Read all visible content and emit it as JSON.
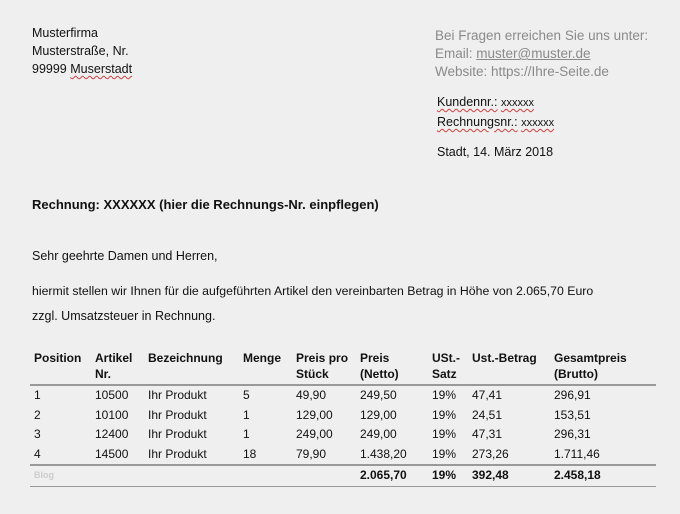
{
  "sender": {
    "company": "Musterfirma",
    "street": "Musterstraße, Nr.",
    "zip": "99999",
    "city": "Muserstadt"
  },
  "contact": {
    "intro": "Bei Fragen erreichen Sie uns unter:",
    "email_label": "Email: ",
    "email": "muster@muster.de",
    "website": "Website: https://Ihre-Seite.de"
  },
  "refs": {
    "customer_label": "Kundennr.:",
    "customer_value": "xxxxxx",
    "invoice_label": "Rechnungsnr.:",
    "invoice_value": "xxxxxx"
  },
  "date": "Stadt, 14. März 2018",
  "title": "Rechnung: XXXXXX (hier die Rechnungs-Nr. einpflegen)",
  "greeting": "Sehr geehrte Damen und Herren,",
  "body_line1": "hiermit stellen wir Ihnen für die aufgeführten Artikel den vereinbarten Betrag in Höhe von 2.065,70 Euro",
  "body_line2": "zzgl. Umsatzsteuer in Rechnung.",
  "table": {
    "headers": [
      [
        "Position",
        ""
      ],
      [
        "Artikel",
        "Nr."
      ],
      [
        "Bezeichnung",
        ""
      ],
      [
        "Menge",
        ""
      ],
      [
        "Preis pro",
        "Stück"
      ],
      [
        "Preis",
        "(Netto)"
      ],
      [
        "USt.-",
        "Satz"
      ],
      [
        "Ust.-Betrag",
        ""
      ],
      [
        "Gesamtpreis",
        "(Brutto)"
      ]
    ],
    "rows": [
      [
        "1",
        "10500",
        "Ihr Produkt",
        "5",
        "49,90",
        "249,50",
        "19%",
        "47,41",
        "296,91"
      ],
      [
        "2",
        "10100",
        "Ihr Produkt",
        "1",
        "129,00",
        "129,00",
        "19%",
        "24,51",
        "153,51"
      ],
      [
        "3",
        "12400",
        "Ihr Produkt",
        "1",
        "249,00",
        "249,00",
        "19%",
        "47,31",
        "296,31"
      ],
      [
        "4",
        "14500",
        "Ihr Produkt",
        "18",
        "79,90",
        "1.438,20",
        "19%",
        "273,26",
        "1.711,46"
      ]
    ],
    "totals": {
      "watermark": "Blog",
      "netto": "2.065,70",
      "rate": "19%",
      "tax": "392,48",
      "brutto": "2.458,18"
    }
  }
}
